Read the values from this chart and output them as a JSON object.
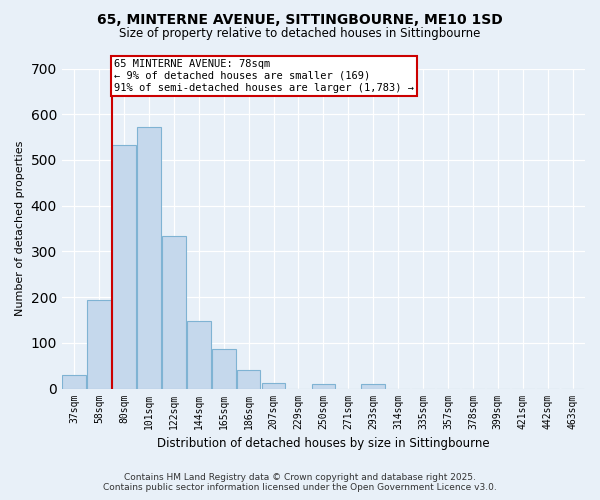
{
  "title": "65, MINTERNE AVENUE, SITTINGBOURNE, ME10 1SD",
  "subtitle": "Size of property relative to detached houses in Sittingbourne",
  "xlabel": "Distribution of detached houses by size in Sittingbourne",
  "ylabel": "Number of detached properties",
  "categories": [
    "37sqm",
    "58sqm",
    "80sqm",
    "101sqm",
    "122sqm",
    "144sqm",
    "165sqm",
    "186sqm",
    "207sqm",
    "229sqm",
    "250sqm",
    "271sqm",
    "293sqm",
    "314sqm",
    "335sqm",
    "357sqm",
    "378sqm",
    "399sqm",
    "421sqm",
    "442sqm",
    "463sqm"
  ],
  "values": [
    30,
    193,
    533,
    573,
    333,
    147,
    87,
    40,
    13,
    0,
    10,
    0,
    10,
    0,
    0,
    0,
    0,
    0,
    0,
    0,
    0
  ],
  "bar_color": "#c5d8ec",
  "bar_edge_color": "#7fb3d3",
  "property_line_color": "#cc0000",
  "annotation_title": "65 MINTERNE AVENUE: 78sqm",
  "annotation_line1": "← 9% of detached houses are smaller (169)",
  "annotation_line2": "91% of semi-detached houses are larger (1,783) →",
  "annotation_box_color": "#ffffff",
  "annotation_box_edge_color": "#cc0000",
  "ylim": [
    0,
    700
  ],
  "yticks": [
    0,
    100,
    200,
    300,
    400,
    500,
    600,
    700
  ],
  "footer_line1": "Contains HM Land Registry data © Crown copyright and database right 2025.",
  "footer_line2": "Contains public sector information licensed under the Open Government Licence v3.0.",
  "background_color": "#e8f0f8",
  "plot_background_color": "#e8f0f8",
  "title_fontsize": 10,
  "subtitle_fontsize": 8.5
}
